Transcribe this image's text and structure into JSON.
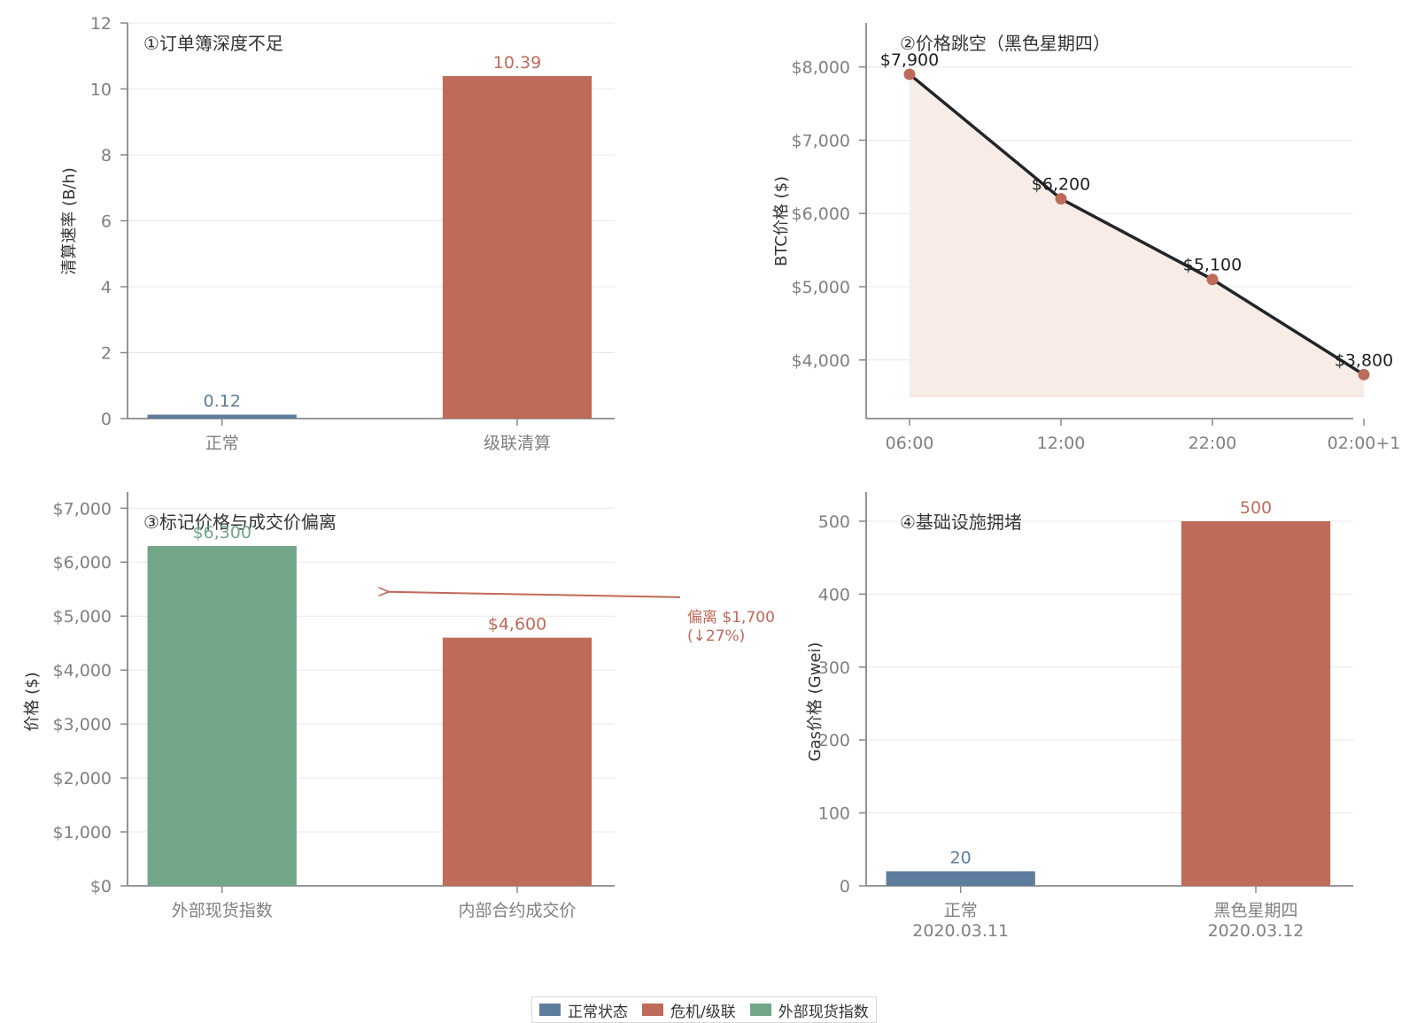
{
  "colors": {
    "normal": "#5E7D9E",
    "crisis": "#BE6B5A",
    "external": "#72A688",
    "line": "#222528",
    "fill": "#F8ECE6",
    "axis": "#888888",
    "grid": "#E8E8E8"
  },
  "legend": [
    {
      "label": "正常状态",
      "color": "#5E7D9E"
    },
    {
      "label": "危机/级联",
      "color": "#BE6B5A"
    },
    {
      "label": "外部现货指数",
      "color": "#72A688"
    }
  ],
  "chart_data": [
    {
      "type": "bar",
      "title": "①订单簿深度不足",
      "ylabel": "清算速率 (B/h)",
      "categories": [
        "正常",
        "级联清算"
      ],
      "values": [
        0.12,
        10.39
      ],
      "value_labels": [
        "0.12",
        "10.39"
      ],
      "bar_colors": [
        "#5E7D9E",
        "#BE6B5A"
      ],
      "ylim": [
        0,
        12
      ],
      "yticks": [
        0,
        2,
        4,
        6,
        8,
        10,
        12
      ],
      "ytick_labels": [
        "0",
        "2",
        "4",
        "6",
        "8",
        "10",
        "12"
      ],
      "grid": true
    },
    {
      "type": "line",
      "title": "②价格跳空（黑色星期四）",
      "ylabel": "BTC价格 ($)",
      "x": [
        "06:00",
        "12:00",
        "22:00",
        "02:00+1"
      ],
      "values": [
        7900,
        6200,
        5100,
        3800
      ],
      "value_labels": [
        "$7,900",
        "$6,200",
        "$5,100",
        "$3,800"
      ],
      "ylim": [
        3200,
        8600
      ],
      "fill_baseline": 3500,
      "yticks": [
        4000,
        5000,
        6000,
        7000,
        8000
      ],
      "ytick_labels": [
        "$4,000",
        "$5,000",
        "$6,000",
        "$7,000",
        "$8,000"
      ],
      "grid": true
    },
    {
      "type": "bar",
      "title": "③标记价格与成交价偏离",
      "ylabel": "价格 ($)",
      "categories": [
        "外部现货指数",
        "内部合约成交价"
      ],
      "values": [
        6300,
        4600
      ],
      "value_labels": [
        "$6,300",
        "$4,600"
      ],
      "bar_colors": [
        "#72A688",
        "#BE6B5A"
      ],
      "ylim": [
        0,
        7300
      ],
      "yticks": [
        0,
        1000,
        2000,
        3000,
        4000,
        5000,
        6000,
        7000
      ],
      "ytick_labels": [
        "$0",
        "$1,000",
        "$2,000",
        "$3,000",
        "$4,000",
        "$5,000",
        "$6,000",
        "$7,000"
      ],
      "annotation": {
        "lines": [
          "偏离 $1,700",
          "(↓27%)"
        ],
        "y_value": 5350,
        "target_y_value": 5450
      },
      "grid": true
    },
    {
      "type": "bar",
      "title": "④基础设施拥堵",
      "ylabel": "Gas价格 (Gwei)",
      "categories": [
        "正常",
        "黑色星期四"
      ],
      "category_sublabels": [
        "2020.03.11",
        "2020.03.12"
      ],
      "values": [
        20,
        500
      ],
      "value_labels": [
        "20",
        "500"
      ],
      "bar_colors": [
        "#5E7D9E",
        "#BE6B5A"
      ],
      "ylim": [
        0,
        540
      ],
      "yticks": [
        0,
        100,
        200,
        300,
        400,
        500
      ],
      "ytick_labels": [
        "0",
        "100",
        "200",
        "300",
        "400",
        "500"
      ],
      "grid": true
    }
  ]
}
